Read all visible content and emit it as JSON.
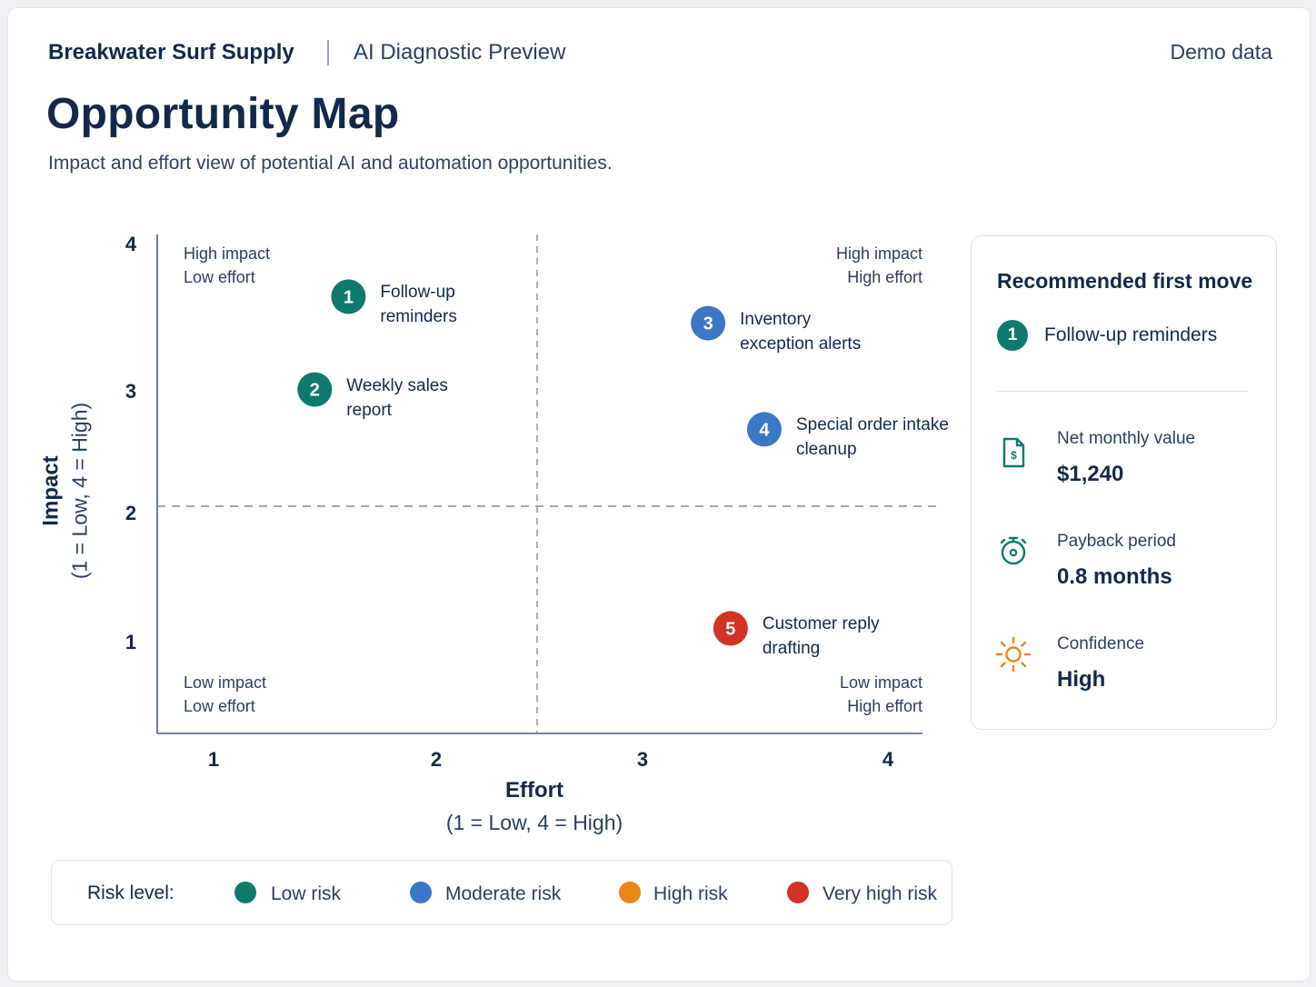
{
  "header": {
    "brand": "Breakwater Surf Supply",
    "context": "AI Diagnostic Preview",
    "data_note": "Demo data"
  },
  "title": "Opportunity Map",
  "subtitle": "Impact and effort view of potential AI and automation opportunities.",
  "colors": {
    "low_risk": "#0f7a6c",
    "moderate_risk": "#3b78c3",
    "high_risk": "#e8861a",
    "very_high_risk": "#d03424",
    "navy": "#13294b"
  },
  "chart_data": {
    "type": "scatter",
    "title": "Opportunity Map",
    "xlabel": "Effort",
    "xlabel_sub": "(1 = Low, 4 = High)",
    "ylabel": "Impact",
    "ylabel_sub": "(1 = Low, 4 = High)",
    "xlim": [
      1,
      4
    ],
    "ylim": [
      1,
      4
    ],
    "x_ticks": [
      "1",
      "2",
      "3",
      "4"
    ],
    "y_ticks": [
      "4",
      "3",
      "2",
      "1"
    ],
    "quadrant_divider": {
      "x": 2.5,
      "y": 2
    },
    "quadrants": {
      "top_left": [
        "High impact",
        "Low effort"
      ],
      "top_right": [
        "High impact",
        "High effort"
      ],
      "bottom_left": [
        "Low impact",
        "Low effort"
      ],
      "bottom_right": [
        "Low impact",
        "High effort"
      ]
    },
    "points": [
      {
        "id": "1",
        "label": [
          "Follow-up",
          "reminders"
        ],
        "effort": 1.6,
        "impact": 3.6,
        "risk": "low_risk"
      },
      {
        "id": "2",
        "label": [
          "Weekly sales",
          "report"
        ],
        "effort": 1.45,
        "impact": 2.9,
        "risk": "low_risk"
      },
      {
        "id": "3",
        "label": [
          "Inventory",
          "exception alerts"
        ],
        "effort": 3.2,
        "impact": 3.4,
        "risk": "moderate_risk"
      },
      {
        "id": "4",
        "label": [
          "Special order intake",
          "cleanup"
        ],
        "effort": 3.45,
        "impact": 2.6,
        "risk": "moderate_risk"
      },
      {
        "id": "5",
        "label": [
          "Customer reply",
          "drafting"
        ],
        "effort": 3.3,
        "impact": 1.1,
        "risk": "very_high_risk"
      }
    ]
  },
  "panel": {
    "title": "Recommended first move",
    "rec_id": "1",
    "rec_label": "Follow-up reminders",
    "metrics": [
      {
        "icon": "invoice-dollar-icon",
        "label": "Net monthly value",
        "value": "$1,240"
      },
      {
        "icon": "stopwatch-icon",
        "label": "Payback period",
        "value": "0.8 months"
      },
      {
        "icon": "sun-icon",
        "label": "Confidence",
        "value": "High"
      }
    ]
  },
  "legend": {
    "title": "Risk level:",
    "items": [
      {
        "key": "low_risk",
        "label": "Low risk"
      },
      {
        "key": "moderate_risk",
        "label": "Moderate risk"
      },
      {
        "key": "high_risk",
        "label": "High risk"
      },
      {
        "key": "very_high_risk",
        "label": "Very high risk"
      }
    ]
  }
}
